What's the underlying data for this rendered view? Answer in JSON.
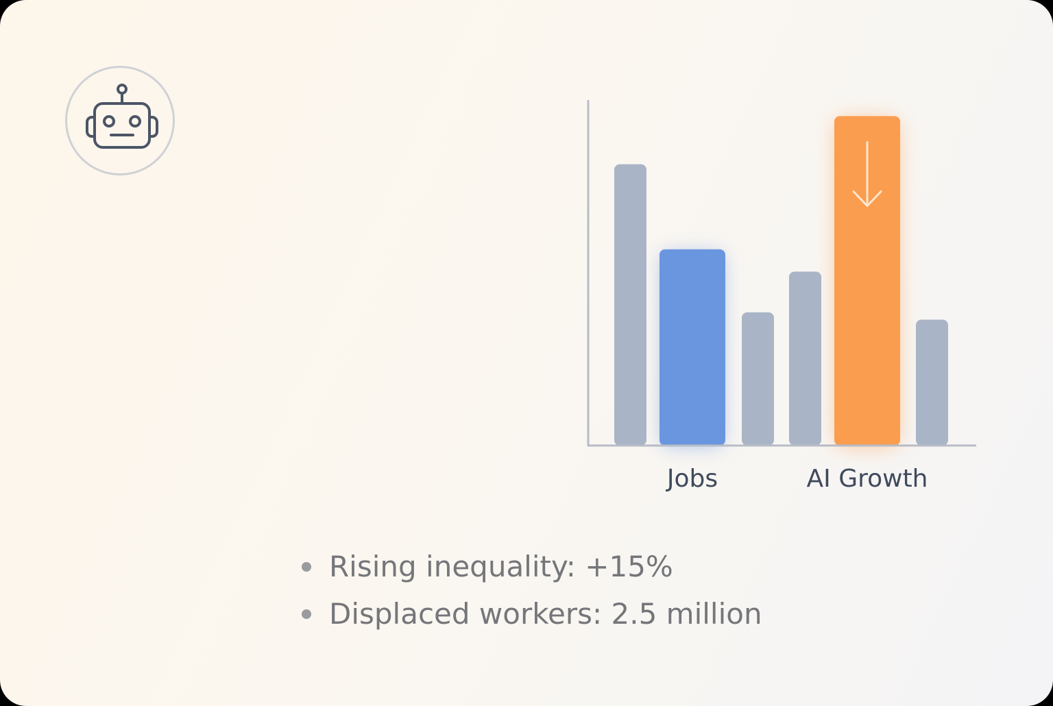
{
  "icons": {
    "badge": "robot-icon",
    "highlight_marker": "arrow-down-icon"
  },
  "colors": {
    "neutral_bar": "#a9b4c6",
    "jobs_bar": "#6a96e0",
    "ai_bar": "#fb9d4e",
    "axis": "#b7bcc6",
    "label": "#3f4a5c",
    "bullet_text": "#75767a"
  },
  "chart_data": {
    "type": "bar",
    "categories": [
      "",
      "Jobs",
      "",
      "",
      "AI Growth",
      ""
    ],
    "values": [
      76,
      53,
      36,
      47,
      89,
      34
    ],
    "highlight": [
      "none",
      "blue",
      "none",
      "none",
      "orange",
      "none"
    ],
    "category_labels": {
      "jobs": "Jobs",
      "ai_growth": "AI Growth"
    },
    "title": "",
    "xlabel": "",
    "ylabel": "",
    "ylim": [
      0,
      100
    ],
    "grid": false,
    "legend": "none",
    "annotations": [
      "arrow-down on AI Growth bar"
    ]
  },
  "stats": [
    {
      "text": "Rising inequality: +15%"
    },
    {
      "text": "Displaced workers: 2.5 million"
    }
  ]
}
